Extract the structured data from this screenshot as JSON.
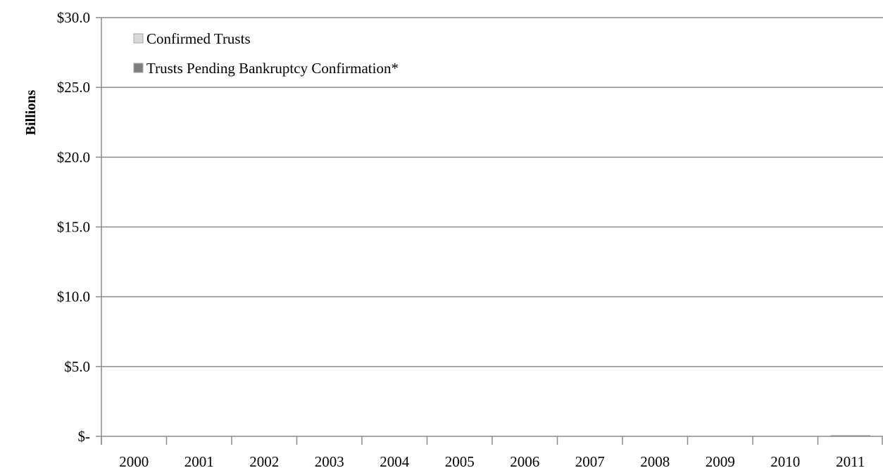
{
  "chart_data": {
    "type": "bar",
    "stacked": true,
    "title": "",
    "xlabel": "",
    "ylabel": "Billions",
    "ylim": [
      0,
      30
    ],
    "yticks": [
      0,
      5,
      10,
      15,
      20,
      25,
      30
    ],
    "ytick_labels": [
      "$-",
      "$5.0",
      "$10.0",
      "$15.0",
      "$20.0",
      "$25.0",
      "$30.0"
    ],
    "categories": [
      "2000",
      "2001",
      "2002",
      "2003",
      "2004",
      "2005",
      "2006",
      "2007",
      "2008",
      "2009",
      "2010",
      "2011"
    ],
    "series": [
      {
        "name": "Confirmed Trusts",
        "color": "#d9d9d9",
        "values": [
          0,
          0,
          0,
          0,
          0,
          0,
          0,
          0,
          0,
          0,
          0,
          0.05
        ]
      },
      {
        "name": "Trusts Pending Bankruptcy Confirmation*",
        "color": "#7f7f7f",
        "values": [
          0,
          0,
          0,
          0,
          0,
          0,
          0,
          0,
          0,
          0,
          0,
          0
        ]
      }
    ],
    "grid": true,
    "legend_position": "top-left"
  }
}
